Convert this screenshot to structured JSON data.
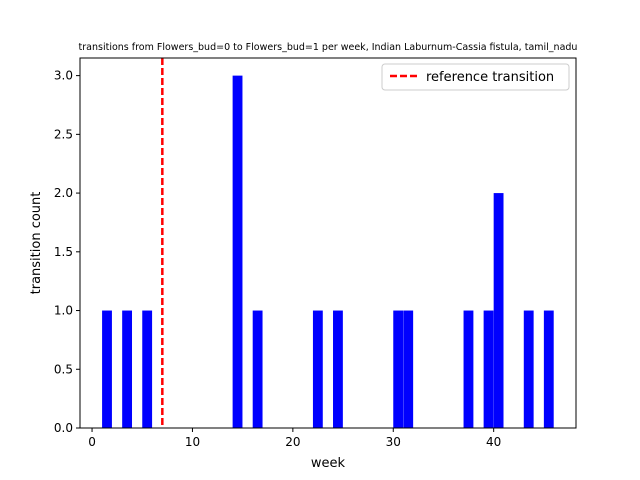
{
  "chart_data": {
    "type": "bar",
    "title": "transitions from Flowers_bud=0 to Flowers_bud=1 per week, Indian Laburnum-Cassia fistula, tamil_nadu",
    "xlabel": "week",
    "ylabel": "transition count",
    "xlim": [
      -1.2,
      48.2
    ],
    "ylim": [
      0,
      3.15
    ],
    "xticks": [
      0,
      10,
      20,
      30,
      40
    ],
    "yticks": [
      0.0,
      0.5,
      1.0,
      1.5,
      2.0,
      2.5,
      3.0
    ],
    "bar_color": "#0000ff",
    "series": [
      {
        "bars": [
          {
            "week": 1,
            "count": 1
          },
          {
            "week": 3,
            "count": 1
          },
          {
            "week": 5,
            "count": 1
          },
          {
            "week": 14,
            "count": 3
          },
          {
            "week": 16,
            "count": 1
          },
          {
            "week": 22,
            "count": 1
          },
          {
            "week": 24,
            "count": 1
          },
          {
            "week": 30,
            "count": 1
          },
          {
            "week": 31,
            "count": 1
          },
          {
            "week": 37,
            "count": 1
          },
          {
            "week": 39,
            "count": 1
          },
          {
            "week": 40,
            "count": 2
          },
          {
            "week": 43,
            "count": 1
          },
          {
            "week": 45,
            "count": 1
          }
        ]
      }
    ],
    "reference_line": {
      "week": 7,
      "label": "reference transition",
      "color": "#ff0000"
    },
    "legend": {
      "position": "top-right",
      "entries": [
        "reference transition"
      ]
    },
    "grid": false
  }
}
